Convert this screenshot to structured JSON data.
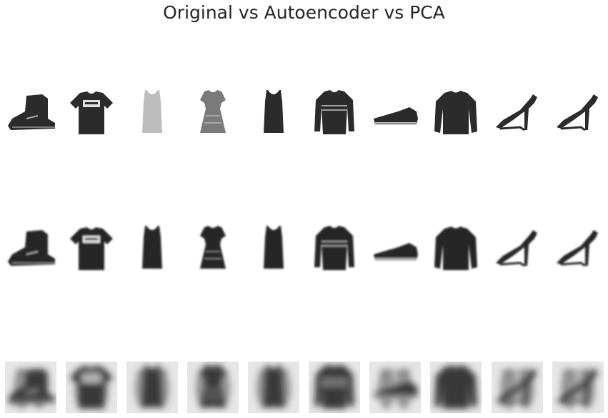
{
  "figure": {
    "title": "Original vs Autoencoder vs PCA"
  },
  "rows": [
    {
      "id": "original",
      "items": [
        "ankle-boot",
        "t-shirt",
        "top",
        "dress",
        "top",
        "sweater",
        "sneaker",
        "pullover",
        "sandal",
        "sandal"
      ]
    },
    {
      "id": "autoencoder",
      "items": [
        "ankle-boot",
        "t-shirt",
        "top",
        "dress",
        "top",
        "sweater",
        "sneaker",
        "pullover",
        "sandal",
        "sandal"
      ]
    },
    {
      "id": "pca",
      "items": [
        "ankle-boot",
        "t-shirt",
        "top",
        "dress",
        "top",
        "sweater",
        "sneaker",
        "pullover",
        "sandal",
        "sandal"
      ]
    }
  ]
}
